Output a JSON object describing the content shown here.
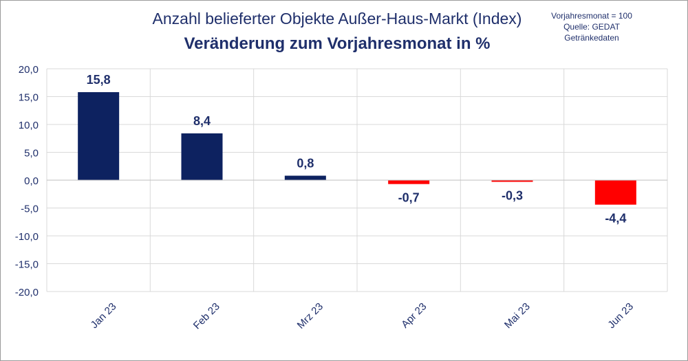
{
  "header": {
    "title": "Anzahl belieferter Objekte Außer-Haus-Markt (Index)",
    "subtitle": "Veränderung zum Vorjahresmonat in %",
    "note_lines": [
      "Vorjahresmonat = 100",
      "Quelle: GEDAT",
      "Getränkedaten"
    ]
  },
  "colors": {
    "positive": "#0d2260",
    "negative": "#ff0000",
    "text": "#1f2f6b",
    "grid": "#d9d9d9"
  },
  "chart_data": {
    "type": "bar",
    "title": "Anzahl belieferter Objekte Außer-Haus-Markt (Index)",
    "subtitle": "Veränderung zum Vorjahresmonat in %",
    "categories": [
      "Jan 23",
      "Feb 23",
      "Mrz 23",
      "Apr 23",
      "Mai 23",
      "Jun 23"
    ],
    "values": [
      15.8,
      8.4,
      0.8,
      -0.7,
      -0.3,
      -4.4
    ],
    "data_labels": [
      "15,8",
      "8,4",
      "0,8",
      "-0,7",
      "-0,3",
      "-4,4"
    ],
    "ylim": [
      -20,
      20
    ],
    "yticks": [
      20,
      15,
      10,
      5,
      0,
      -5,
      -10,
      -15,
      -20
    ],
    "ytick_labels": [
      "20,0",
      "15,0",
      "10,0",
      "5,0",
      "0,0",
      "-5,0",
      "-10,0",
      "-15,0",
      "-20,0"
    ],
    "grid": true,
    "legend": false
  }
}
